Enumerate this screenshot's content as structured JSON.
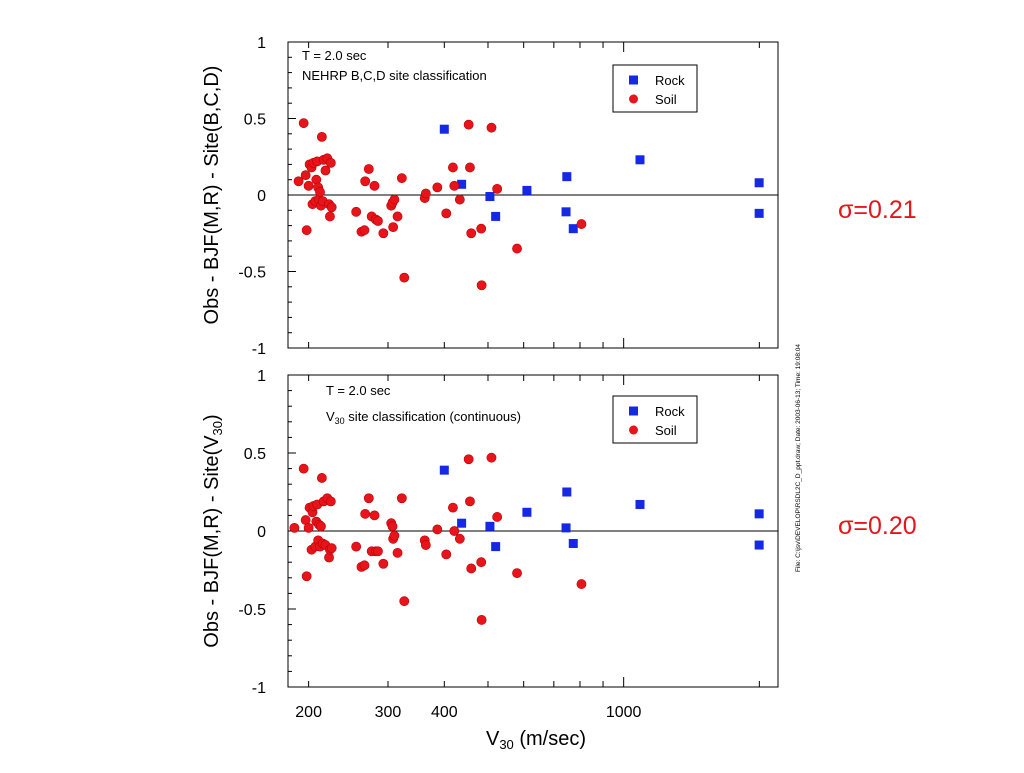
{
  "colors": {
    "rock": "#1428e6",
    "soil": "#e8141c",
    "sigma": "#e8141c"
  },
  "x_axis_label": {
    "main": "V",
    "sub": "30",
    "unit": " (m/sec)"
  },
  "file_stamp": "File: C:\\jsv\\DEVELOP\\RSDL2C_D_ppt.draw;   Date: 2003-06-13;   Time: 19:08:04",
  "sigma_labels": [
    "σ=0.21",
    "σ=0.20"
  ],
  "chart_data": [
    {
      "type": "scatter",
      "annotation_lines": [
        "T = 2.0 sec",
        "NEHRP   B,C,D  site  classification"
      ],
      "ylabel": "Obs - BJF(M,R) - Site(B,C,D)",
      "xscale": "log",
      "xlim": [
        180,
        2200
      ],
      "ylim": [
        -1,
        1
      ],
      "yticks": [
        1,
        0.5,
        0,
        -0.5,
        -1
      ],
      "ytick_labels": [
        "1",
        "0.5",
        "0",
        "-0.5",
        "-1"
      ],
      "xtick_labels": [],
      "legend": "top-right",
      "series": [
        {
          "name": "Rock",
          "marker": "square",
          "points": [
            [
              400,
              0.43
            ],
            [
              437,
              0.07
            ],
            [
              505,
              -0.01
            ],
            [
              520,
              -0.14
            ],
            [
              610,
              0.03
            ],
            [
              745,
              -0.11
            ],
            [
              748,
              0.12
            ],
            [
              773,
              -0.22
            ],
            [
              1087,
              0.23
            ],
            [
              1998,
              0.08
            ],
            [
              1998,
              -0.12
            ]
          ]
        },
        {
          "name": "Soil",
          "marker": "circle",
          "points": [
            [
              190,
              0.09
            ],
            [
              195,
              0.47
            ],
            [
              197,
              0.13
            ],
            [
              198,
              -0.23
            ],
            [
              200,
              0.06
            ],
            [
              201,
              0.2
            ],
            [
              203,
              0.18
            ],
            [
              204,
              -0.06
            ],
            [
              205,
              0.21
            ],
            [
              207,
              -0.04
            ],
            [
              208,
              0.1
            ],
            [
              209,
              0.22
            ],
            [
              210,
              0.05
            ],
            [
              211,
              -0.03
            ],
            [
              212,
              0.02
            ],
            [
              213,
              -0.07
            ],
            [
              214,
              0.38
            ],
            [
              215,
              -0.04
            ],
            [
              216,
              0.23
            ],
            [
              218,
              0.16
            ],
            [
              220,
              0.24
            ],
            [
              222,
              -0.06
            ],
            [
              223,
              -0.14
            ],
            [
              224,
              0.21
            ],
            [
              225,
              -0.08
            ],
            [
              255,
              -0.11
            ],
            [
              262,
              -0.24
            ],
            [
              266,
              -0.23
            ],
            [
              267,
              0.09
            ],
            [
              272,
              0.17
            ],
            [
              276,
              -0.14
            ],
            [
              280,
              0.06
            ],
            [
              282,
              -0.16
            ],
            [
              285,
              -0.17
            ],
            [
              293,
              -0.25
            ],
            [
              305,
              -0.07
            ],
            [
              307,
              -0.05
            ],
            [
              308,
              -0.21
            ],
            [
              310,
              -0.03
            ],
            [
              315,
              -0.14
            ],
            [
              322,
              0.11
            ],
            [
              326,
              -0.54
            ],
            [
              362,
              -0.02
            ],
            [
              364,
              0.01
            ],
            [
              386,
              0.05
            ],
            [
              404,
              -0.12
            ],
            [
              418,
              0.18
            ],
            [
              421,
              0.06
            ],
            [
              433,
              -0.03
            ],
            [
              453,
              0.46
            ],
            [
              456,
              0.18
            ],
            [
              459,
              -0.25
            ],
            [
              483,
              -0.22
            ],
            [
              484,
              -0.59
            ],
            [
              509,
              0.44
            ],
            [
              524,
              0.04
            ],
            [
              580,
              -0.35
            ],
            [
              806,
              -0.19
            ]
          ]
        }
      ]
    },
    {
      "type": "scatter",
      "annotation_lines": [
        "T = 2.0 sec",
        "V30  site  classification   (continuous)"
      ],
      "ylabel": "Obs - BJF(M,R) - Site(V30)",
      "xscale": "log",
      "xlim": [
        180,
        2200
      ],
      "ylim": [
        -1,
        1
      ],
      "yticks": [
        1,
        0.5,
        0,
        -0.5,
        -1
      ],
      "ytick_labels": [
        "1",
        "0.5",
        "0",
        "-0.5",
        "-1"
      ],
      "xtick_values": [
        200,
        300,
        400,
        1000
      ],
      "xtick_labels": [
        "200",
        "300",
        "400",
        "1000"
      ],
      "legend": "top-right",
      "series": [
        {
          "name": "Rock",
          "marker": "square",
          "points": [
            [
              400,
              0.39
            ],
            [
              437,
              0.05
            ],
            [
              505,
              0.03
            ],
            [
              520,
              -0.1
            ],
            [
              610,
              0.12
            ],
            [
              745,
              0.02
            ],
            [
              748,
              0.25
            ],
            [
              773,
              -0.08
            ],
            [
              1087,
              0.17
            ],
            [
              1998,
              0.11
            ],
            [
              1998,
              -0.09
            ]
          ]
        },
        {
          "name": "Soil",
          "marker": "circle",
          "points": [
            [
              186,
              0.02
            ],
            [
              195,
              0.4
            ],
            [
              197,
              0.07
            ],
            [
              198,
              -0.29
            ],
            [
              200,
              0.02
            ],
            [
              201,
              0.15
            ],
            [
              203,
              -0.12
            ],
            [
              204,
              0.12
            ],
            [
              205,
              0.16
            ],
            [
              207,
              -0.1
            ],
            [
              208,
              0.06
            ],
            [
              209,
              0.17
            ],
            [
              210,
              -0.06
            ],
            [
              211,
              0.04
            ],
            [
              212,
              -0.1
            ],
            [
              213,
              0.03
            ],
            [
              214,
              0.34
            ],
            [
              215,
              -0.08
            ],
            [
              216,
              0.19
            ],
            [
              218,
              -0.09
            ],
            [
              220,
              0.21
            ],
            [
              222,
              -0.17
            ],
            [
              223,
              -0.12
            ],
            [
              224,
              0.19
            ],
            [
              225,
              -0.11
            ],
            [
              255,
              -0.1
            ],
            [
              262,
              -0.23
            ],
            [
              266,
              -0.22
            ],
            [
              267,
              0.11
            ],
            [
              272,
              0.21
            ],
            [
              276,
              -0.13
            ],
            [
              280,
              0.1
            ],
            [
              282,
              -0.13
            ],
            [
              285,
              -0.13
            ],
            [
              293,
              -0.21
            ],
            [
              305,
              0.05
            ],
            [
              307,
              0.03
            ],
            [
              308,
              -0.05
            ],
            [
              310,
              -0.03
            ],
            [
              315,
              -0.14
            ],
            [
              322,
              0.21
            ],
            [
              326,
              -0.45
            ],
            [
              362,
              -0.06
            ],
            [
              364,
              -0.09
            ],
            [
              386,
              0.01
            ],
            [
              404,
              -0.15
            ],
            [
              418,
              0.15
            ],
            [
              421,
              0.0
            ],
            [
              433,
              -0.05
            ],
            [
              453,
              0.46
            ],
            [
              456,
              0.19
            ],
            [
              459,
              -0.24
            ],
            [
              483,
              -0.2
            ],
            [
              484,
              -0.57
            ],
            [
              509,
              0.47
            ],
            [
              524,
              0.09
            ],
            [
              580,
              -0.27
            ],
            [
              806,
              -0.34
            ]
          ]
        }
      ]
    }
  ]
}
